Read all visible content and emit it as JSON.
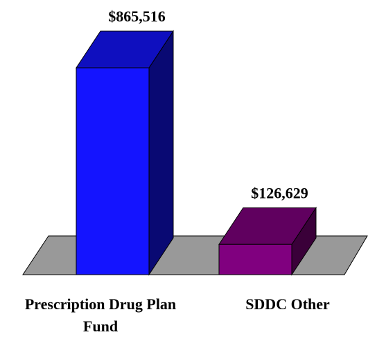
{
  "chart_data": {
    "type": "bar3d",
    "categories": [
      "Prescription Drug Plan Fund",
      "SDDC Other"
    ],
    "values": [
      865516,
      126629
    ],
    "value_labels": [
      "$865,516",
      "$126,629"
    ],
    "colors": [
      "#1414ff",
      "#80007f"
    ]
  }
}
